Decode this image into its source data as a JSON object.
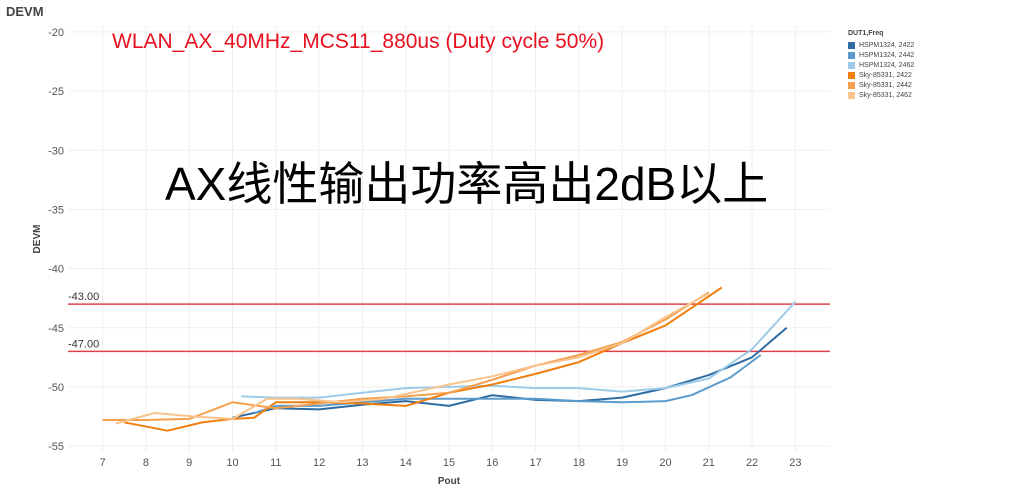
{
  "page_heading": "DEVM",
  "annotation": "WLAN_AX_40MHz_MCS11_880us (Duty cycle 50%)",
  "big_text": "AX线性输出功率高出2dB以上",
  "chart_data": {
    "type": "line",
    "xlabel": "Pout",
    "ylabel": "DEVM",
    "xlim": [
      6.2,
      23.8
    ],
    "ylim": [
      -55.5,
      -19.5
    ],
    "xticks": [
      7,
      8,
      9,
      10,
      11,
      12,
      13,
      14,
      15,
      16,
      17,
      18,
      19,
      20,
      21,
      22,
      23
    ],
    "yticks": [
      -20,
      -25,
      -30,
      -35,
      -40,
      -45,
      -50,
      -55
    ],
    "grid": true,
    "legend": {
      "title": "DUT1,Freq",
      "position": "top-right"
    },
    "reference_lines": [
      {
        "y": -43.0,
        "label": "-43.00",
        "color": "#e0404a"
      },
      {
        "y": -47.0,
        "label": "-47.00",
        "color": "#e0404a"
      }
    ],
    "series": [
      {
        "name": "HSPM1324, 2422",
        "color": "#2e6ca3",
        "x": [
          10.0,
          11.0,
          12.0,
          13.0,
          14.0,
          15.0,
          16.0,
          17.0,
          18.0,
          19.0,
          20.0,
          21.0,
          22.0,
          22.8
        ],
        "y": [
          -52.6,
          -51.8,
          -51.9,
          -51.5,
          -51.2,
          -51.6,
          -50.7,
          -51.1,
          -51.2,
          -50.9,
          -50.1,
          -49.0,
          -47.5,
          -45.0
        ]
      },
      {
        "name": "HSPM1324, 2442",
        "color": "#5b9bcb",
        "x": [
          10.5,
          11.0,
          12.0,
          13.0,
          14.0,
          15.0,
          16.0,
          17.0,
          18.0,
          19.0,
          20.0,
          20.6,
          21.5,
          22.2
        ],
        "y": [
          -52.2,
          -51.6,
          -51.6,
          -51.3,
          -51.0,
          -51.0,
          -51.0,
          -51.0,
          -51.2,
          -51.3,
          -51.2,
          -50.7,
          -49.2,
          -47.3
        ]
      },
      {
        "name": "HSPM1324, 2462",
        "color": "#9dcbe8",
        "x": [
          10.2,
          11.0,
          12.0,
          13.0,
          14.0,
          15.0,
          16.0,
          17.0,
          18.0,
          19.0,
          20.0,
          21.0,
          22.0,
          23.0
        ],
        "y": [
          -50.8,
          -50.9,
          -50.9,
          -50.5,
          -50.1,
          -50.0,
          -49.9,
          -50.1,
          -50.1,
          -50.4,
          -50.1,
          -49.3,
          -46.8,
          -42.8
        ]
      },
      {
        "name": "Sky-85331, 2422",
        "color": "#f07f0e",
        "x": [
          7.5,
          8.5,
          9.3,
          10.0,
          10.5,
          11.0,
          12.0,
          13.0,
          14.0,
          15.0,
          16.0,
          17.0,
          18.0,
          19.0,
          20.0,
          21.3
        ],
        "y": [
          -53.0,
          -53.7,
          -53.0,
          -52.7,
          -52.6,
          -51.3,
          -51.3,
          -51.4,
          -51.6,
          -50.5,
          -49.8,
          -48.9,
          -47.9,
          -46.3,
          -44.8,
          -41.6
        ]
      },
      {
        "name": "Sky-85331, 2442",
        "color": "#f5a04f",
        "x": [
          7.0,
          8.0,
          9.0,
          10.0,
          11.0,
          12.0,
          13.0,
          14.0,
          15.0,
          16.0,
          17.0,
          18.0,
          19.0,
          20.0,
          21.0
        ],
        "y": [
          -52.8,
          -52.8,
          -52.7,
          -51.3,
          -51.8,
          -51.4,
          -51.0,
          -50.8,
          -50.5,
          -49.4,
          -48.2,
          -47.3,
          -46.2,
          -44.3,
          -42.0
        ]
      },
      {
        "name": "Sky-85331, 2462",
        "color": "#f9c38c",
        "x": [
          7.3,
          8.2,
          9.1,
          10.0,
          10.8,
          11.5,
          12.5,
          13.5,
          14.5,
          15.0,
          16.0,
          17.0,
          18.0,
          19.0,
          20.0,
          21.0
        ],
        "y": [
          -53.1,
          -52.2,
          -52.5,
          -52.7,
          -51.0,
          -51.0,
          -51.3,
          -51.0,
          -50.2,
          -49.8,
          -49.1,
          -48.2,
          -47.5,
          -46.3,
          -44.1,
          -42.1
        ]
      }
    ]
  }
}
